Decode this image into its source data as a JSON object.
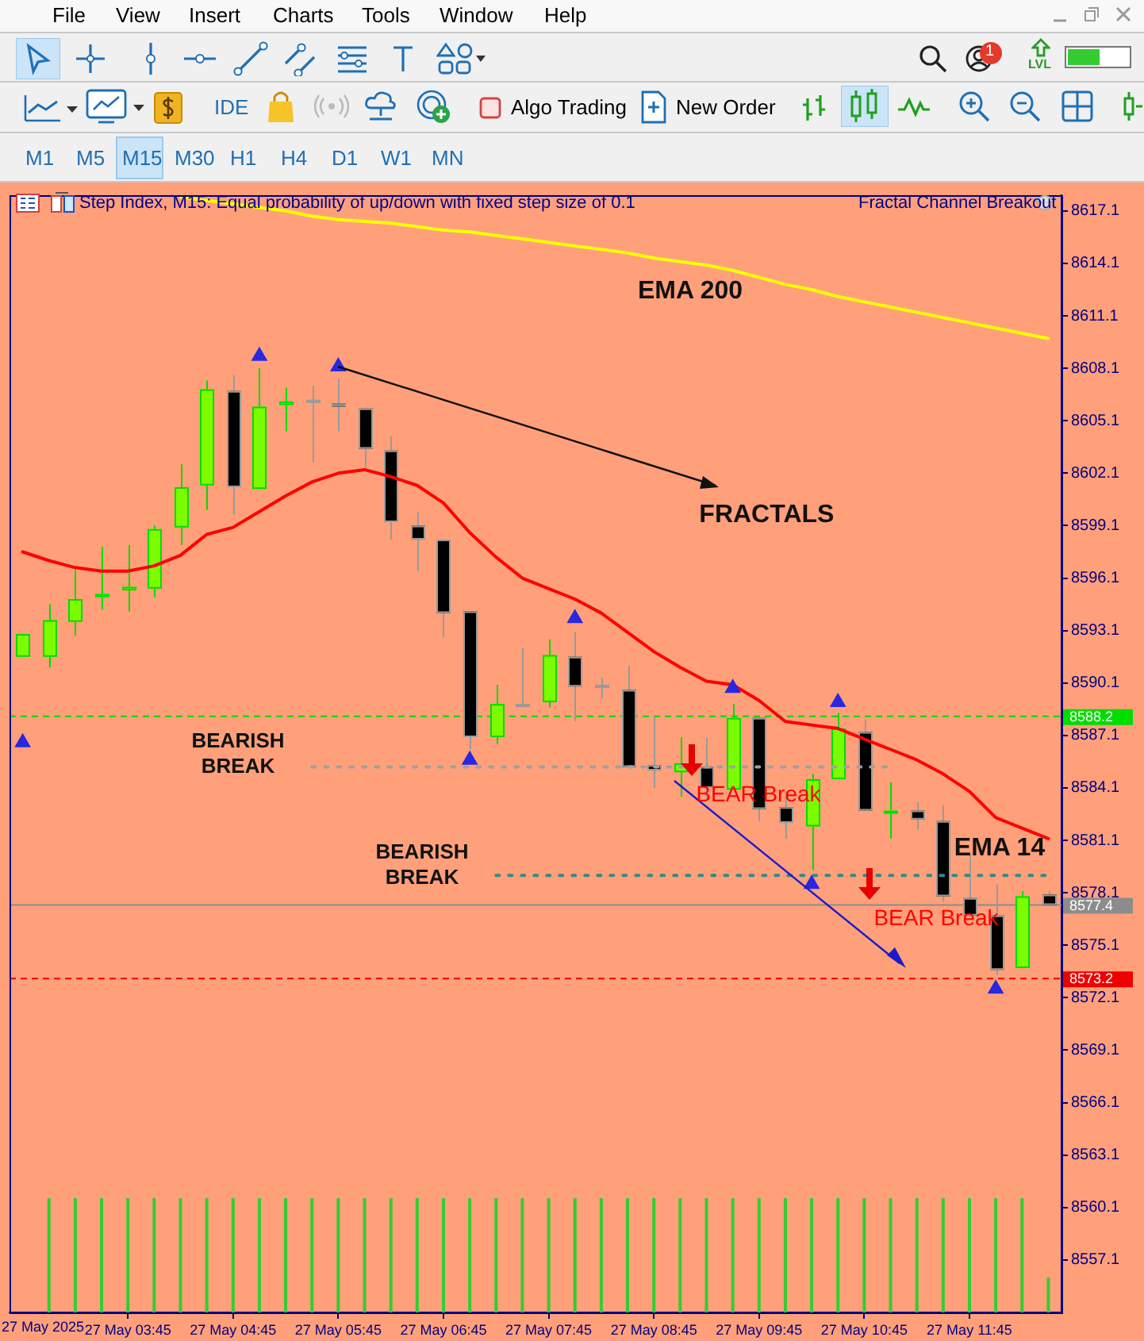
{
  "chart_data": {
    "type": "candlestick",
    "title": "Step Index, M15:  Equal probability of up/down with fixed step size of 0.1",
    "categories": [
      null,
      null,
      null,
      null,
      "27 May 03:45",
      null,
      null,
      null,
      "27 May 04:45",
      null,
      null,
      null,
      "27 May 05:45",
      null,
      null,
      null,
      "27 May 06:45",
      null,
      null,
      null,
      "27 May 07:45",
      null,
      null,
      null,
      "27 May 08:45",
      null,
      null,
      null,
      "27 May 09:45",
      null,
      null,
      null,
      "27 May 10:45",
      null,
      null,
      null,
      "27 May 11:45",
      null,
      null,
      null
    ],
    "ohlc": [
      [
        8591.6,
        8592.9,
        8591.6,
        8592.9
      ],
      [
        8591.6,
        8594.6,
        8591.0,
        8593.7
      ],
      [
        8593.6,
        8596.6,
        8592.8,
        8594.9
      ],
      [
        8595.0,
        8597.9,
        8594.3,
        8595.2
      ],
      [
        8595.4,
        8598.0,
        8594.2,
        8595.6
      ],
      [
        8595.5,
        8599.1,
        8595.0,
        8598.9
      ],
      [
        8599.0,
        8602.6,
        8598.0,
        8601.3
      ],
      [
        8601.4,
        8607.4,
        8600.0,
        8606.9
      ],
      [
        8606.8,
        8607.7,
        8599.7,
        8601.3
      ],
      [
        8601.2,
        8608.1,
        8601.2,
        8605.9
      ],
      [
        8606.0,
        8607.0,
        8604.5,
        8606.2
      ],
      [
        8606.3,
        8607.1,
        8602.7,
        8606.3
      ],
      [
        8606.1,
        8607.5,
        8604.5,
        8605.9
      ],
      [
        8605.8,
        8605.8,
        8602.4,
        8603.5
      ],
      [
        8603.4,
        8604.2,
        8598.3,
        8599.3
      ],
      [
        8599.1,
        8599.9,
        8596.5,
        8598.3
      ],
      [
        8598.3,
        8598.3,
        8592.7,
        8594.1
      ],
      [
        8594.2,
        8594.2,
        8586.3,
        8587.0
      ],
      [
        8587.0,
        8590.0,
        8586.6,
        8588.9
      ],
      [
        8588.9,
        8592.1,
        8588.7,
        8588.9
      ],
      [
        8589.0,
        8592.6,
        8588.7,
        8591.7
      ],
      [
        8591.6,
        8593.0,
        8587.9,
        8589.9
      ],
      [
        8590.0,
        8590.4,
        8589.2,
        8590.0
      ],
      [
        8589.7,
        8591.1,
        8585.3,
        8585.3
      ],
      [
        8585.4,
        8588.2,
        8584.1,
        8585.1
      ],
      [
        8585.0,
        8587.0,
        8583.6,
        8585.5
      ],
      [
        8585.3,
        8587.0,
        8583.5,
        8584.1
      ],
      [
        8584.0,
        8588.9,
        8584.0,
        8588.1
      ],
      [
        8588.1,
        8588.1,
        8582.2,
        8582.9
      ],
      [
        8583.0,
        8583.9,
        8581.2,
        8582.1
      ],
      [
        8581.9,
        8584.9,
        8579.4,
        8584.6
      ],
      [
        8584.6,
        8588.4,
        8584.6,
        8587.5
      ],
      [
        8587.3,
        8588.0,
        8582.8,
        8582.8
      ],
      [
        8582.7,
        8584.4,
        8581.2,
        8582.8
      ],
      [
        8582.8,
        8583.3,
        8581.7,
        8582.3
      ],
      [
        8582.2,
        8583.1,
        8577.6,
        8577.9
      ],
      [
        8577.8,
        8580.3,
        8576.7,
        8576.8
      ],
      [
        8576.8,
        8578.6,
        8573.4,
        8573.7
      ],
      [
        8573.8,
        8578.2,
        8573.8,
        8577.9
      ],
      [
        8578.0,
        8578.2,
        8577.4,
        8577.4
      ]
    ],
    "colors": [
      "#7cfc00",
      "#7cfc00",
      "#7cfc00",
      "#7cfc00",
      "#7cfc00",
      "#7cfc00",
      "#7cfc00",
      "#7cfc00",
      "#000000",
      "#7cfc00",
      "#7cfc00",
      "#a0a0a0",
      "#000000",
      "#000000",
      "#000000",
      "#000000",
      "#000000",
      "#000000",
      "#7cfc00",
      "#a0a0a0",
      "#7cfc00",
      "#000000",
      "#a0a0a0",
      "#000000",
      "#000000",
      "#7cfc00",
      "#000000",
      "#7cfc00",
      "#000000",
      "#000000",
      "#7cfc00",
      "#7cfc00",
      "#000000",
      "#7cfc00",
      "#000000",
      "#000000",
      "#000000",
      "#000000",
      "#7cfc00",
      "#000000"
    ],
    "ylim": [
      8554.1,
      8618.0
    ],
    "yticks": [
      8617.1,
      8614.1,
      8611.1,
      8608.1,
      8605.1,
      8602.1,
      8599.1,
      8596.1,
      8593.1,
      8590.1,
      8587.1,
      8584.1,
      8581.1,
      8578.1,
      8575.1,
      8572.1,
      8569.1,
      8566.1,
      8563.1,
      8560.1,
      8557.1
    ],
    "series": [
      {
        "type": "line",
        "color": "#ffff00",
        "values": [
          null,
          null,
          null,
          null,
          null,
          null,
          8617.9,
          8617.7,
          8617.5,
          8617.3,
          8617.1,
          8616.8,
          8616.6,
          8616.5,
          8616.4,
          8616.2,
          8616.0,
          8615.9,
          8615.7,
          8615.5,
          8615.3,
          8615.1,
          8614.9,
          8614.7,
          8614.4,
          8614.2,
          8614.0,
          8613.7,
          8613.3,
          8612.9,
          8612.6,
          8612.2,
          8611.9,
          8611.6,
          8611.3,
          8611.0,
          8610.7,
          8610.4,
          8610.1,
          8609.8
        ]
      },
      {
        "type": "line",
        "color": "#ff0000",
        "values": [
          8597.6,
          8597.1,
          8596.7,
          8596.5,
          8596.5,
          8596.8,
          8597.4,
          8598.6,
          8599.0,
          8599.9,
          8600.8,
          8601.6,
          8602.1,
          8602.3,
          8601.9,
          8601.4,
          8600.4,
          8598.7,
          8597.3,
          8596.1,
          8595.5,
          8594.9,
          8594.1,
          8593.0,
          8591.9,
          8591.0,
          8590.2,
          8590.0,
          8589.1,
          8587.9,
          8587.7,
          8587.5,
          8586.9,
          8586.3,
          8585.7,
          8584.9,
          8583.9,
          8582.4,
          8581.8,
          8581.2
        ]
      },
      {
        "type": "line",
        "color": "#a0a0a0",
        "line_style": "dotted",
        "values": [
          null,
          null,
          null,
          null,
          null,
          null,
          null,
          null,
          null,
          null,
          null,
          8585.3,
          8585.3,
          8585.3,
          8585.3,
          8585.3,
          8585.3,
          8585.3,
          8585.3,
          8585.3,
          8585.3,
          8585.3,
          8585.3,
          8585.3,
          8585.3,
          8585.3,
          8585.3,
          8585.3,
          8585.3,
          8585.3,
          8585.3,
          8585.3,
          8585.3,
          8585.3,
          null,
          null,
          null,
          null,
          null,
          null
        ]
      },
      {
        "type": "line",
        "color": "#2e8b8b",
        "line_style": "dotted",
        "values": [
          null,
          null,
          null,
          null,
          null,
          null,
          null,
          null,
          null,
          null,
          null,
          null,
          null,
          null,
          null,
          null,
          null,
          null,
          8579.1,
          8579.1,
          8579.1,
          8579.1,
          8579.1,
          8579.1,
          8579.1,
          8579.1,
          8579.1,
          8579.1,
          8579.1,
          8579.1,
          8579.1,
          8579.1,
          8579.1,
          8579.1,
          8579.1,
          8579.1,
          8579.1,
          8579.1,
          8579.1,
          8579.1
        ]
      },
      {
        "type": "scatter",
        "marker": "triangle",
        "color": "#2828e0",
        "values": [
          null,
          null,
          null,
          null,
          null,
          null,
          null,
          null,
          null,
          8608.8,
          null,
          null,
          8608.2,
          null,
          null,
          null,
          null,
          null,
          null,
          null,
          null,
          8593.8,
          null,
          null,
          null,
          null,
          null,
          8589.8,
          null,
          null,
          null,
          8589.0,
          null,
          null,
          null,
          null,
          null,
          null,
          null,
          null
        ]
      },
      {
        "type": "scatter",
        "marker": "triangle",
        "color": "#2828e0",
        "values": [
          8586.7,
          null,
          null,
          null,
          null,
          null,
          null,
          null,
          null,
          null,
          null,
          null,
          null,
          null,
          null,
          null,
          null,
          8585.7,
          null,
          null,
          null,
          null,
          null,
          null,
          null,
          null,
          null,
          null,
          null,
          null,
          8578.6,
          null,
          null,
          null,
          null,
          null,
          null,
          8572.6,
          null,
          null
        ]
      }
    ],
    "ref_lines": [
      {
        "axis": "y",
        "value": 8588.2,
        "label": "8588.2",
        "color": "#00dd00",
        "line_style": "dashed"
      },
      {
        "axis": "y",
        "value": 8577.4,
        "label": "8577.4",
        "color": "#8c8c8c",
        "line_style": "solid"
      },
      {
        "axis": "y",
        "value": 8573.2,
        "label": "8573.2",
        "color": "#ee0000",
        "line_style": "dashed"
      }
    ],
    "annotations": [
      "EMA 200",
      {
        "text": "FRACTALS",
        "x": "27 May 05:45",
        "y": 8608.2
      },
      "BEARISH\nBREAK",
      "BEARISH\nBREAK",
      "EMA 14",
      "BEAR Break",
      "BEAR Break",
      "Fractal Channel Breakout",
      "File",
      "View",
      "Insert",
      "Charts",
      "Tools",
      "Window",
      "Help",
      "1",
      "LVL",
      "IDE",
      "Algo Trading",
      "New Order",
      "M1",
      "M5",
      "M15",
      "M30",
      "H1",
      "H4",
      "D1",
      "W1",
      "MN",
      "27 May 2025"
    ]
  }
}
